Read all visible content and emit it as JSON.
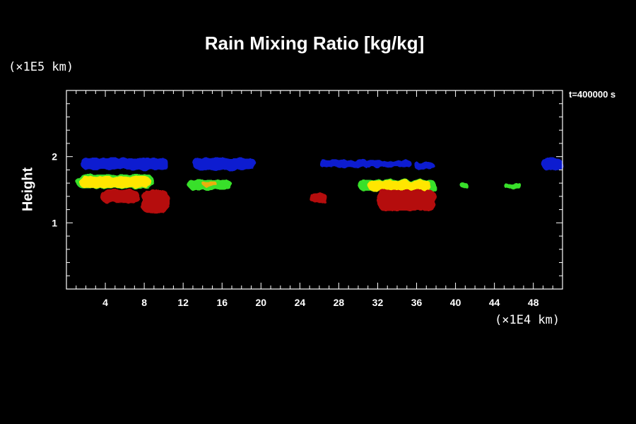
{
  "chart_data": {
    "type": "heatmap",
    "title": "Rain Mixing Ratio [kg/kg]",
    "ylabel": "Height",
    "xlabel": "",
    "y_unit_label": "(×1E5 km)",
    "x_unit_label": "(×1E4 km)",
    "timestamp": "t=400000 s",
    "xlim": [
      0,
      51
    ],
    "ylim": [
      0,
      3
    ],
    "x_ticks": [
      "4",
      "8",
      "12",
      "16",
      "20",
      "24",
      "28",
      "32",
      "36",
      "40",
      "44",
      "48"
    ],
    "y_ticks": [
      "1",
      "2"
    ],
    "colors": {
      "background": "#000000",
      "frame": "#ffffff",
      "blue": "#0a1fd0",
      "red": "#b50a0a",
      "green": "#38e02a",
      "yellow": "#ffe600",
      "orange": "#e8b010"
    },
    "regions": [
      {
        "name": "cloud-band-1",
        "color": "blue",
        "x": [
          1.5,
          10.5
        ],
        "y": [
          1.8,
          1.98
        ]
      },
      {
        "name": "cloud-band-2",
        "color": "blue",
        "x": [
          13.0,
          19.5
        ],
        "y": [
          1.8,
          1.98
        ]
      },
      {
        "name": "cloud-band-3",
        "color": "blue",
        "x": [
          26.0,
          31.0
        ],
        "y": [
          1.84,
          1.95
        ]
      },
      {
        "name": "cloud-band-4",
        "color": "blue",
        "x": [
          30.8,
          35.5
        ],
        "y": [
          1.84,
          1.94
        ]
      },
      {
        "name": "cloud-band-5",
        "color": "blue",
        "x": [
          35.8,
          37.8
        ],
        "y": [
          1.8,
          1.92
        ]
      },
      {
        "name": "cloud-band-6",
        "color": "blue",
        "x": [
          48.8,
          51.0
        ],
        "y": [
          1.8,
          1.98
        ]
      },
      {
        "name": "rain-core-1-fringe",
        "color": "green",
        "x": [
          1.0,
          9.0
        ],
        "y": [
          1.52,
          1.73
        ]
      },
      {
        "name": "rain-core-1",
        "color": "yellow",
        "x": [
          1.3,
          8.7
        ],
        "y": [
          1.53,
          1.7
        ]
      },
      {
        "name": "rain-below-1",
        "color": "red",
        "x": [
          3.5,
          7.5
        ],
        "y": [
          1.3,
          1.5
        ]
      },
      {
        "name": "rain-below-2",
        "color": "red",
        "x": [
          7.7,
          10.5
        ],
        "y": [
          1.15,
          1.5
        ]
      },
      {
        "name": "rain-patch-2-fringe",
        "color": "green",
        "x": [
          12.5,
          17.0
        ],
        "y": [
          1.5,
          1.65
        ]
      },
      {
        "name": "rain-patch-2",
        "color": "orange",
        "x": [
          14.0,
          15.5
        ],
        "y": [
          1.55,
          1.62
        ]
      },
      {
        "name": "rain-below-3",
        "color": "red",
        "x": [
          25.0,
          26.8
        ],
        "y": [
          1.3,
          1.45
        ]
      },
      {
        "name": "rain-core-3-fringe",
        "color": "green",
        "x": [
          30.0,
          38.0
        ],
        "y": [
          1.48,
          1.65
        ]
      },
      {
        "name": "rain-core-3",
        "color": "yellow",
        "x": [
          31.0,
          37.5
        ],
        "y": [
          1.48,
          1.64
        ]
      },
      {
        "name": "rain-below-4",
        "color": "red",
        "x": [
          32.0,
          38.0
        ],
        "y": [
          1.18,
          1.5
        ]
      },
      {
        "name": "rain-patch-5",
        "color": "green",
        "x": [
          40.5,
          41.3
        ],
        "y": [
          1.53,
          1.6
        ]
      },
      {
        "name": "rain-patch-6",
        "color": "green",
        "x": [
          45.0,
          46.8
        ],
        "y": [
          1.52,
          1.6
        ]
      }
    ]
  }
}
